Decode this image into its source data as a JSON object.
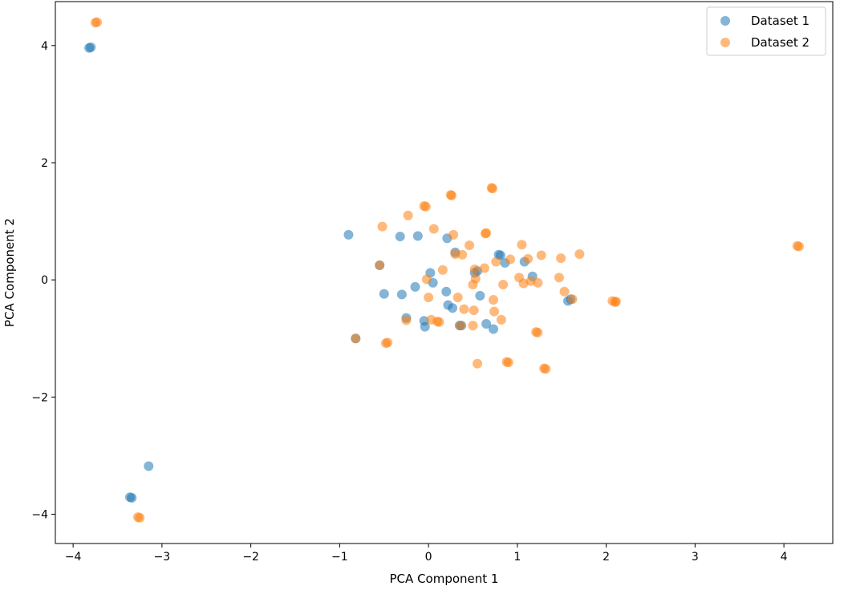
{
  "chart_data": {
    "type": "scatter",
    "title": "",
    "xlabel": "PCA Component 1",
    "ylabel": "PCA Component 2",
    "xlim": [
      -4.2,
      4.55
    ],
    "ylim": [
      -4.5,
      4.75
    ],
    "xticks": [
      -4,
      -3,
      -2,
      -1,
      0,
      1,
      2,
      3,
      4
    ],
    "yticks": [
      -4,
      -2,
      0,
      2,
      4
    ],
    "xtick_labels": [
      "−4",
      "−3",
      "−2",
      "−1",
      "0",
      "1",
      "2",
      "3",
      "4"
    ],
    "ytick_labels": [
      "−4",
      "−2",
      "0",
      "2",
      "4"
    ],
    "grid": false,
    "legend_position": "top-right",
    "series": [
      {
        "name": "Dataset 1",
        "color": "#1f77b4",
        "alpha": 0.55,
        "points": [
          [
            -3.82,
            3.96
          ],
          [
            -3.8,
            3.97
          ],
          [
            -3.36,
            -3.71
          ],
          [
            -3.34,
            -3.72
          ],
          [
            -3.15,
            -3.18
          ],
          [
            -0.9,
            0.77
          ],
          [
            -0.55,
            0.25
          ],
          [
            -0.5,
            -0.24
          ],
          [
            -0.32,
            0.74
          ],
          [
            -0.3,
            -0.25
          ],
          [
            -0.25,
            -0.65
          ],
          [
            -0.15,
            -0.12
          ],
          [
            -0.12,
            0.75
          ],
          [
            -0.05,
            -0.7
          ],
          [
            -0.04,
            -0.8
          ],
          [
            0.02,
            0.12
          ],
          [
            0.05,
            -0.05
          ],
          [
            0.2,
            -0.2
          ],
          [
            0.21,
            0.71
          ],
          [
            0.22,
            -0.43
          ],
          [
            0.27,
            -0.48
          ],
          [
            0.3,
            0.47
          ],
          [
            0.35,
            -0.78
          ],
          [
            0.37,
            -0.78
          ],
          [
            0.52,
            0.12
          ],
          [
            0.55,
            0.15
          ],
          [
            0.58,
            -0.27
          ],
          [
            0.65,
            -0.75
          ],
          [
            0.73,
            -0.84
          ],
          [
            0.79,
            0.43
          ],
          [
            0.81,
            0.42
          ],
          [
            0.86,
            0.29
          ],
          [
            1.08,
            0.31
          ],
          [
            1.17,
            0.06
          ],
          [
            1.57,
            -0.36
          ],
          [
            1.6,
            -0.33
          ],
          [
            -0.82,
            -1.0
          ]
        ]
      },
      {
        "name": "Dataset 2",
        "color": "#ff7f0e",
        "alpha": 0.55,
        "points": [
          [
            -3.75,
            4.39
          ],
          [
            -3.73,
            4.4
          ],
          [
            -3.27,
            -4.05
          ],
          [
            -3.25,
            -4.06
          ],
          [
            -0.82,
            -1.0
          ],
          [
            -0.55,
            0.25
          ],
          [
            -0.52,
            0.91
          ],
          [
            -0.48,
            -1.08
          ],
          [
            -0.46,
            -1.07
          ],
          [
            -0.25,
            -0.69
          ],
          [
            -0.23,
            1.1
          ],
          [
            -0.05,
            1.26
          ],
          [
            -0.03,
            1.25
          ],
          [
            -0.02,
            0.01
          ],
          [
            0.0,
            -0.3
          ],
          [
            0.03,
            -0.68
          ],
          [
            0.06,
            0.87
          ],
          [
            0.1,
            -0.71
          ],
          [
            0.12,
            -0.72
          ],
          [
            0.16,
            0.17
          ],
          [
            0.25,
            1.45
          ],
          [
            0.26,
            1.44
          ],
          [
            0.28,
            0.77
          ],
          [
            0.3,
            0.44
          ],
          [
            0.33,
            -0.3
          ],
          [
            0.36,
            -0.78
          ],
          [
            0.38,
            0.43
          ],
          [
            0.4,
            -0.5
          ],
          [
            0.46,
            0.59
          ],
          [
            0.5,
            -0.78
          ],
          [
            0.5,
            -0.08
          ],
          [
            0.51,
            -0.52
          ],
          [
            0.52,
            0.18
          ],
          [
            0.53,
            0.02
          ],
          [
            0.55,
            -1.43
          ],
          [
            0.63,
            0.2
          ],
          [
            0.64,
            0.79
          ],
          [
            0.65,
            0.8
          ],
          [
            0.71,
            1.57
          ],
          [
            0.72,
            1.56
          ],
          [
            0.73,
            -0.34
          ],
          [
            0.74,
            -0.54
          ],
          [
            0.76,
            0.31
          ],
          [
            0.82,
            -0.68
          ],
          [
            0.84,
            -0.08
          ],
          [
            0.88,
            -1.4
          ],
          [
            0.9,
            -1.41
          ],
          [
            0.92,
            0.35
          ],
          [
            1.02,
            0.04
          ],
          [
            1.05,
            0.6
          ],
          [
            1.07,
            -0.06
          ],
          [
            1.12,
            0.36
          ],
          [
            1.15,
            -0.02
          ],
          [
            1.21,
            -0.89
          ],
          [
            1.23,
            -0.9
          ],
          [
            1.23,
            -0.05
          ],
          [
            1.27,
            0.42
          ],
          [
            1.3,
            -1.51
          ],
          [
            1.32,
            -1.52
          ],
          [
            1.47,
            0.04
          ],
          [
            1.49,
            0.37
          ],
          [
            1.53,
            -0.2
          ],
          [
            1.62,
            -0.33
          ],
          [
            1.7,
            0.44
          ],
          [
            2.07,
            -0.36
          ],
          [
            2.1,
            -0.38
          ],
          [
            2.11,
            -0.37
          ],
          [
            4.15,
            0.58
          ],
          [
            4.17,
            0.57
          ]
        ]
      }
    ]
  }
}
